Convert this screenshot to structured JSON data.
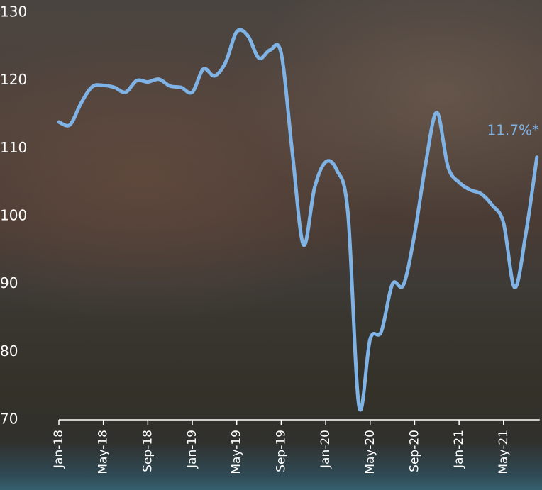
{
  "chart_data": {
    "type": "line",
    "categories": [
      "Jan-18",
      null,
      null,
      null,
      "May-18",
      null,
      null,
      null,
      "Sep-18",
      null,
      null,
      null,
      "Jan-19",
      null,
      null,
      null,
      "May-19",
      null,
      null,
      null,
      "Sep-19",
      null,
      null,
      null,
      "Jan-20",
      null,
      null,
      null,
      "May-20",
      null,
      null,
      null,
      "Sep-20",
      null,
      null,
      null,
      "Jan-21",
      null,
      null,
      null,
      "May-21",
      null,
      null,
      null
    ],
    "series": [
      {
        "color": "#7fb3e6",
        "values": [
          113.9,
          113.5,
          116.7,
          119.1,
          119.3,
          119.0,
          118.3,
          120.0,
          119.8,
          120.2,
          119.2,
          119.0,
          118.3,
          121.7,
          120.7,
          122.7,
          127.2,
          126.6,
          123.3,
          124.5,
          124.0,
          109.4,
          95.8,
          104.2,
          108.0,
          106.8,
          100.5,
          72.0,
          81.9,
          83.0,
          90.0,
          89.9,
          97.4,
          107.8,
          115.3,
          107.3,
          105.0,
          103.9,
          103.3,
          101.6,
          99.0,
          89.5,
          97.4,
          108.7
        ]
      }
    ],
    "ylim": [
      70,
      130
    ],
    "yticks": [
      70,
      80,
      90,
      100,
      110,
      120,
      130
    ],
    "annotation": "11.7%*"
  }
}
